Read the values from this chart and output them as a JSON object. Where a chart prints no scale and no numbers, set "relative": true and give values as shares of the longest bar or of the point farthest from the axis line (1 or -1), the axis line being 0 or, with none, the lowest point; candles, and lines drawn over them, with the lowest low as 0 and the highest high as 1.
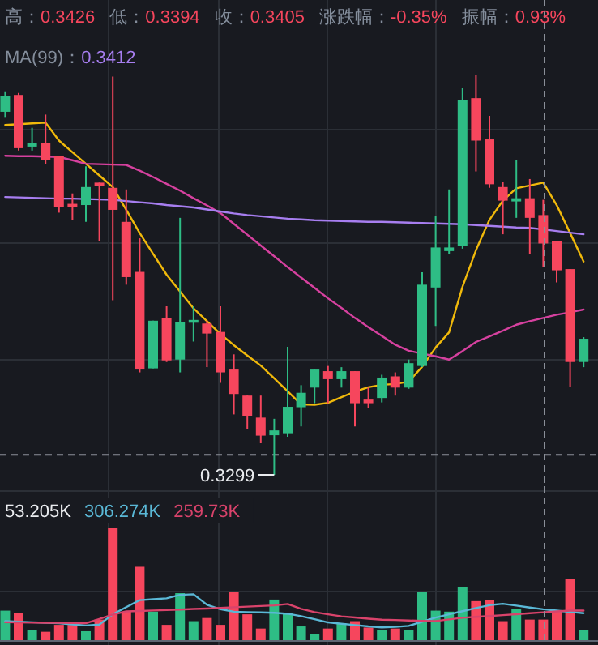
{
  "chart_data": [
    {
      "type": "candlestick",
      "relative": true,
      "grid": true,
      "categories": [
        null,
        null,
        null,
        null,
        null,
        null,
        null,
        null,
        null,
        null,
        null,
        null,
        null,
        null,
        null,
        null,
        null,
        null,
        null,
        null,
        null,
        null,
        null,
        null,
        null,
        null,
        null,
        null,
        null,
        null,
        null,
        null,
        null,
        null,
        null,
        null,
        null,
        null,
        null,
        null,
        null,
        null,
        null,
        null
      ],
      "ohlc": [
        [
          0.907,
          0.958,
          0.892,
          0.946
        ],
        [
          0.949,
          0.954,
          0.81,
          0.816
        ],
        [
          0.82,
          0.867,
          0.81,
          0.829
        ],
        [
          0.829,
          0.9,
          0.777,
          0.786
        ],
        [
          0.797,
          0.797,
          0.655,
          0.668
        ],
        [
          0.677,
          0.703,
          0.636,
          0.668
        ],
        [
          0.674,
          0.771,
          0.632,
          0.719
        ],
        [
          0.73,
          0.73,
          0.584,
          0.722
        ],
        [
          0.717,
          0.995,
          0.436,
          0.662
        ],
        [
          0.632,
          0.713,
          0.475,
          0.494
        ],
        [
          0.507,
          0.591,
          0.256,
          0.263
        ],
        [
          0.266,
          0.385,
          0.266,
          0.385
        ],
        [
          0.391,
          0.421,
          0.282,
          0.286
        ],
        [
          0.288,
          0.642,
          0.256,
          0.382
        ],
        [
          0.38,
          0.421,
          0.333,
          0.387
        ],
        [
          0.378,
          0.385,
          0.269,
          0.353
        ],
        [
          0.357,
          0.421,
          0.23,
          0.256
        ],
        [
          0.263,
          0.301,
          0.151,
          0.202
        ],
        [
          0.198,
          0.198,
          0.115,
          0.147
        ],
        [
          0.143,
          0.198,
          0.079,
          0.098
        ],
        [
          0.099,
          0.14,
          0,
          0.111
        ],
        [
          0.104,
          0.32,
          0.095,
          0.17
        ],
        [
          0.169,
          0.224,
          0.121,
          0.205
        ],
        [
          0.218,
          0.263,
          0.179,
          0.263
        ],
        [
          0.259,
          0.272,
          0.179,
          0.239
        ],
        [
          0.239,
          0.269,
          0.218,
          0.259
        ],
        [
          0.259,
          0.259,
          0.121,
          0.179
        ],
        [
          0.188,
          0.218,
          0.166,
          0.179
        ],
        [
          0.192,
          0.25,
          0.181,
          0.243
        ],
        [
          0.246,
          0.256,
          0.198,
          0.218
        ],
        [
          0.218,
          0.288,
          0.215,
          0.279
        ],
        [
          0.272,
          0.506,
          0.269,
          0.475
        ],
        [
          0.468,
          0.646,
          0.372,
          0.568
        ],
        [
          0.559,
          0.713,
          0.552,
          0.568
        ],
        [
          0.571,
          0.967,
          0.565,
          0.936
        ],
        [
          0.941,
          1,
          0.758,
          0.835
        ],
        [
          0.838,
          0.897,
          0.717,
          0.726
        ],
        [
          0.719,
          0.732,
          0.601,
          0.685
        ],
        [
          0.683,
          0.786,
          0.642,
          0.691
        ],
        [
          0.691,
          0.739,
          0.552,
          0.642
        ],
        [
          0.649,
          0.687,
          0.52,
          0.578
        ],
        [
          0.584,
          0.584,
          0.481,
          0.511
        ],
        [
          0.514,
          0.514,
          0.22,
          0.282
        ],
        [
          0.282,
          0.344,
          0.269,
          0.34
        ]
      ],
      "series": [
        {
          "type": "line",
          "color": "#f0b90b",
          "values": [
            0.874,
            0.876,
            0.878,
            0.88,
            0.835,
            0.806,
            0.777,
            0.748,
            0.719,
            0.662,
            0.604,
            0.552,
            0.5,
            0.458,
            0.416,
            0.384,
            0.352,
            0.324,
            0.298,
            0.273,
            0.241,
            0.209,
            0.176,
            0.175,
            0.18,
            0.194,
            0.208,
            0.219,
            0.225,
            0.227,
            0.233,
            0.27,
            0.318,
            0.356,
            0.47,
            0.561,
            0.637,
            0.685,
            0.716,
            0.723,
            0.73,
            0.674,
            0.604,
            0.533
          ]
        },
        {
          "type": "line",
          "color": "#d6419f",
          "values": [
            0.797,
            0.796,
            0.796,
            0.795,
            0.794,
            0.786,
            0.777,
            0.776,
            0.775,
            0.774,
            0.76,
            0.744,
            0.727,
            0.71,
            0.691,
            0.673,
            0.654,
            0.627,
            0.6,
            0.573,
            0.546,
            0.519,
            0.493,
            0.467,
            0.441,
            0.417,
            0.392,
            0.369,
            0.347,
            0.325,
            0.31,
            0.303,
            0.296,
            0.288,
            0.309,
            0.332,
            0.346,
            0.36,
            0.375,
            0.384,
            0.392,
            0.4,
            0.406,
            0.413
          ]
        },
        {
          "type": "line",
          "color": "#a77ef0",
          "values": [
            0.694,
            0.693,
            0.692,
            0.691,
            0.69,
            0.69,
            0.689,
            0.688,
            0.687,
            0.684,
            0.681,
            0.678,
            0.674,
            0.671,
            0.668,
            0.663,
            0.658,
            0.653,
            0.649,
            0.646,
            0.643,
            0.64,
            0.638,
            0.636,
            0.635,
            0.634,
            0.633,
            0.632,
            0.632,
            0.631,
            0.63,
            0.629,
            0.628,
            0.627,
            0.626,
            0.624,
            0.622,
            0.62,
            0.618,
            0.617,
            0.613,
            0.609,
            0.605,
            0.601
          ]
        }
      ],
      "ref_lines": [
        {
          "axis": "y",
          "value": 0.05,
          "line_style": "dashed"
        }
      ],
      "annotations": [
        "高：0.3426",
        "低：0.3394",
        "收：0.3405",
        "涨跌幅：-0.35%",
        "振幅：0.93%",
        "MA(99)：0.3412",
        "0.3299"
      ]
    },
    {
      "type": "bar",
      "relative": true,
      "grid": true,
      "categories": [
        null,
        null,
        null,
        null,
        null,
        null,
        null,
        null,
        null,
        null,
        null,
        null,
        null,
        null,
        null,
        null,
        null,
        null,
        null,
        null,
        null,
        null,
        null,
        null,
        null,
        null,
        null,
        null,
        null,
        null,
        null,
        null,
        null,
        null,
        null,
        null,
        null,
        null,
        null,
        null,
        null,
        null,
        null,
        null
      ],
      "values": [
        0.264,
        0.241,
        0.09,
        0.075,
        0.137,
        0.137,
        0.08,
        0.184,
        1,
        0.255,
        0.656,
        0.255,
        0.137,
        0.42,
        0.17,
        0.198,
        0.137,
        0.434,
        0.231,
        0.104,
        0.363,
        0.245,
        0.123,
        0.057,
        0.104,
        0.151,
        0.17,
        0.113,
        0.09,
        0.104,
        0.09,
        0.434,
        0.264,
        0.255,
        0.476,
        0.349,
        0.358,
        0.17,
        0.278,
        0.184,
        0.184,
        0.255,
        0.547,
        0.09
      ],
      "colors": [
        "#2ebd85",
        "#f6465d",
        "#2ebd85",
        "#f6465d",
        "#f6465d",
        "#f6465d",
        "#2ebd85",
        "#f6465d",
        "#f6465d",
        "#f6465d",
        "#f6465d",
        "#2ebd85",
        "#f6465d",
        "#2ebd85",
        "#2ebd85",
        "#f6465d",
        "#f6465d",
        "#f6465d",
        "#f6465d",
        "#f6465d",
        "#2ebd85",
        "#2ebd85",
        "#2ebd85",
        "#2ebd85",
        "#f6465d",
        "#2ebd85",
        "#f6465d",
        "#f6465d",
        "#2ebd85",
        "#f6465d",
        "#2ebd85",
        "#2ebd85",
        "#2ebd85",
        "#2ebd85",
        "#2ebd85",
        "#f6465d",
        "#f6465d",
        "#f6465d",
        "#2ebd85",
        "#f6465d",
        "#f6465d",
        "#f6465d",
        "#f6465d",
        "#2ebd85"
      ],
      "series": [
        {
          "type": "line",
          "color": "#5ab8d6",
          "values": [
            0.17,
            0.165,
            0.16,
            0.156,
            0.151,
            0.141,
            0.131,
            0.14,
            0.231,
            0.295,
            0.358,
            0.366,
            0.374,
            0.405,
            0.41,
            0.316,
            0.277,
            0.254,
            0.251,
            0.248,
            0.245,
            0.236,
            0.215,
            0.187,
            0.159,
            0.147,
            0.135,
            0.123,
            0.114,
            0.119,
            0.128,
            0.165,
            0.202,
            0.231,
            0.259,
            0.287,
            0.313,
            0.325,
            0.309,
            0.292,
            0.276,
            0.264,
            0.253,
            0.241
          ]
        },
        {
          "type": "line",
          "color": "#d9436b",
          "values": [
            0.16,
            0.159,
            0.157,
            0.156,
            0.155,
            0.153,
            0.152,
            0.19,
            0.229,
            0.257,
            0.261,
            0.265,
            0.269,
            0.274,
            0.279,
            0.283,
            0.288,
            0.294,
            0.3,
            0.305,
            0.311,
            0.323,
            0.28,
            0.251,
            0.231,
            0.213,
            0.203,
            0.192,
            0.183,
            0.18,
            0.176,
            0.173,
            0.171,
            0.186,
            0.2,
            0.208,
            0.216,
            0.224,
            0.232,
            0.241,
            0.249,
            0.257,
            0.264,
            0.264
          ]
        }
      ],
      "annotations": [
        "53.205K",
        "306.274K",
        "259.73K"
      ]
    }
  ]
}
